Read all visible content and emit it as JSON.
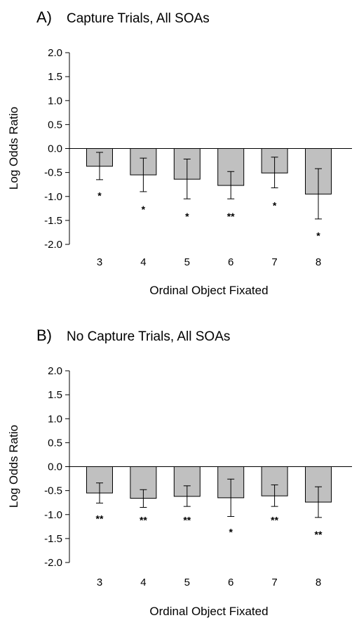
{
  "chart_data": [
    {
      "type": "bar",
      "panel": "A)",
      "title": "Capture Trials, All SOAs",
      "xlabel": "Ordinal Object Fixated",
      "ylabel": "Log Odds Ratio",
      "ylim": [
        -2.0,
        2.0
      ],
      "yticks": [
        "2.0",
        "1.5",
        "1.0",
        "0.5",
        "0.0",
        "-0.5",
        "-1.0",
        "-1.5",
        "-2.0"
      ],
      "categories": [
        "3",
        "4",
        "5",
        "6",
        "7",
        "8"
      ],
      "values": [
        -0.37,
        -0.55,
        -0.64,
        -0.77,
        -0.51,
        -0.95
      ],
      "error_low": [
        -0.65,
        -0.9,
        -1.05,
        -1.05,
        -0.82,
        -1.47
      ],
      "error_high": [
        -0.08,
        -0.2,
        -0.22,
        -0.48,
        -0.18,
        -0.42
      ],
      "significance": [
        "*",
        "*",
        "*",
        "**",
        "*",
        "*"
      ],
      "significance_y": [
        -0.97,
        -1.25,
        -1.4,
        -1.4,
        -1.17,
        -1.8
      ]
    },
    {
      "type": "bar",
      "panel": "B)",
      "title": "No Capture Trials, All SOAs",
      "xlabel": "Ordinal Object Fixated",
      "ylabel": "Log Odds Ratio",
      "ylim": [
        -2.0,
        2.0
      ],
      "yticks": [
        "2.0",
        "1.5",
        "1.0",
        "0.5",
        "0.0",
        "-0.5",
        "-1.0",
        "-1.5",
        "-2.0"
      ],
      "categories": [
        "3",
        "4",
        "5",
        "6",
        "7",
        "8"
      ],
      "values": [
        -0.55,
        -0.66,
        -0.62,
        -0.65,
        -0.61,
        -0.74
      ],
      "error_low": [
        -0.76,
        -0.85,
        -0.83,
        -1.04,
        -0.83,
        -1.06
      ],
      "error_high": [
        -0.34,
        -0.48,
        -0.4,
        -0.26,
        -0.38,
        -0.42
      ],
      "significance": [
        "**",
        "**",
        "**",
        "*",
        "**",
        "**"
      ],
      "significance_y": [
        -1.07,
        -1.1,
        -1.1,
        -1.35,
        -1.1,
        -1.4
      ]
    }
  ]
}
